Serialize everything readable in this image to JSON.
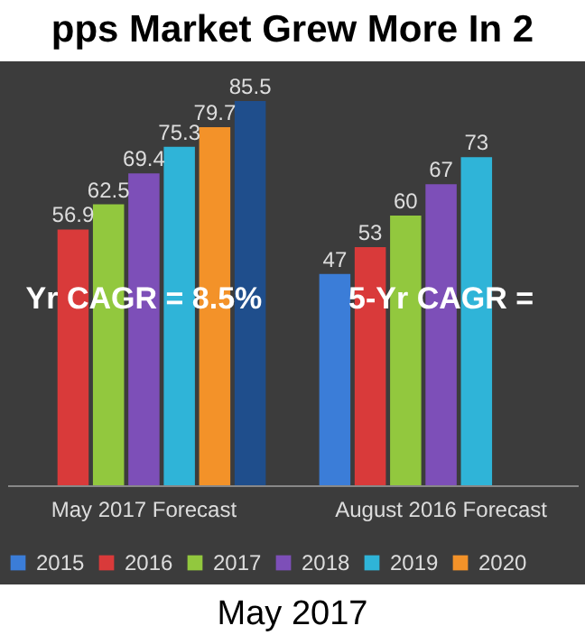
{
  "chart_data": {
    "type": "bar",
    "title": "pps Market Grew More In 2",
    "categories": [
      "May 2017 Forecast",
      "August 2016 Forecast"
    ],
    "series": [
      {
        "name": "2015",
        "color": "#3b7dd8",
        "values": [
          null,
          47
        ]
      },
      {
        "name": "2016",
        "color": "#d93a3a",
        "values": [
          56.9,
          53
        ]
      },
      {
        "name": "2017",
        "color": "#92c83e",
        "values": [
          62.5,
          60
        ]
      },
      {
        "name": "2018",
        "color": "#7d4fb8",
        "values": [
          69.4,
          67
        ]
      },
      {
        "name": "2019",
        "color": "#2fb4d8",
        "values": [
          75.3,
          73
        ]
      },
      {
        "name": "2020",
        "color": "#f39229",
        "values": [
          79.7,
          null
        ]
      },
      {
        "color": "#1f4e8c",
        "values": [
          85.5,
          null
        ]
      }
    ],
    "legend": "bottom",
    "data_labels": true,
    "tick_labels": "x",
    "annotations": [
      "Yr CAGR = 8.5%",
      "5-Yr CAGR =",
      "May 2017"
    ]
  }
}
